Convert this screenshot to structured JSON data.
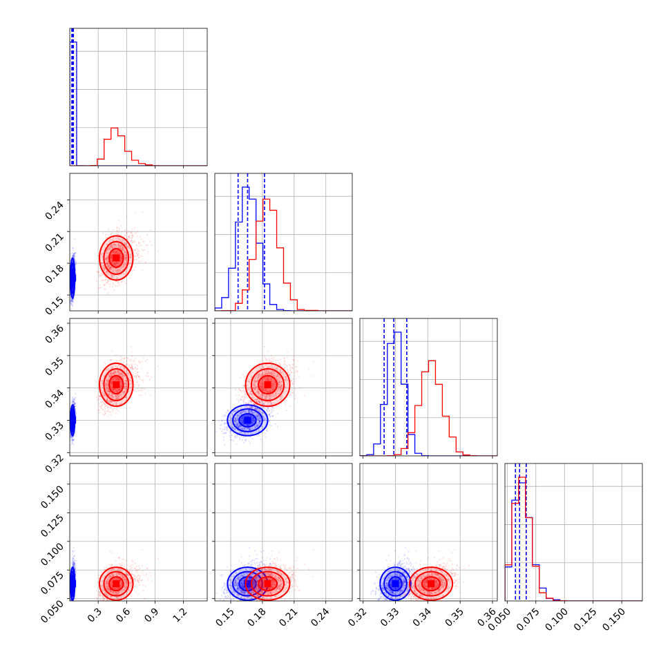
{
  "chart_data": {
    "type": "corner",
    "title": "",
    "series": [
      {
        "name": "",
        "color": "#0000ff",
        "means": [
          0.03,
          0.166,
          0.33,
          0.063
        ],
        "sds": [
          0.012,
          0.01,
          0.0025,
          0.004
        ],
        "skew": [
          false,
          false,
          false,
          true
        ],
        "quantiles_dashed": [
          [
            0.022,
            0.03,
            0.038
          ],
          [
            0.157,
            0.166,
            0.182
          ],
          [
            0.3265,
            0.3295,
            0.3335
          ],
          [
            0.0572,
            0.0608,
            0.0666
          ]
        ]
      },
      {
        "name": "",
        "color": "#ff0000",
        "means": [
          0.49,
          0.185,
          0.341,
          0.063
        ],
        "sds": [
          0.09,
          0.011,
          0.0035,
          0.006
        ],
        "skew": [
          true,
          false,
          false,
          true
        ],
        "quantiles_dashed": []
      }
    ],
    "parameters": [
      {
        "range": [
          0.0,
          1.45
        ],
        "ticks": [
          0.3,
          0.6,
          0.9,
          1.2
        ],
        "tick_labels": [
          "0.3",
          "0.6",
          "0.9",
          "1.2"
        ]
      },
      {
        "range": [
          0.135,
          0.265
        ],
        "ticks": [
          0.15,
          0.18,
          0.21,
          0.24
        ],
        "tick_labels": [
          "0.15",
          "0.18",
          "0.21",
          "0.24"
        ]
      },
      {
        "range": [
          0.319,
          0.3615
        ],
        "ticks": [
          0.32,
          0.33,
          0.34,
          0.35,
          0.36
        ],
        "tick_labels": [
          "0.32",
          "0.33",
          "0.34",
          "0.35",
          "0.36"
        ]
      },
      {
        "range": [
          0.048,
          0.168
        ],
        "ticks": [
          0.05,
          0.075,
          0.1,
          0.125,
          0.15
        ],
        "tick_labels": [
          "0.050",
          "0.075",
          "0.100",
          "0.125",
          "0.150"
        ]
      }
    ],
    "grid": true,
    "legend": "none"
  }
}
